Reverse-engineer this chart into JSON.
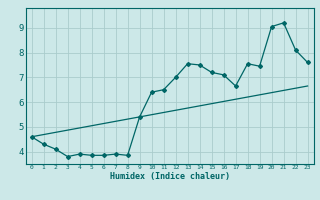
{
  "xlabel": "Humidex (Indice chaleur)",
  "bg_color": "#cce8e8",
  "grid_color": "#aacccc",
  "line_color": "#006666",
  "xlim": [
    -0.5,
    23.5
  ],
  "ylim": [
    3.5,
    9.8
  ],
  "xticks": [
    0,
    1,
    2,
    3,
    4,
    5,
    6,
    7,
    8,
    9,
    10,
    11,
    12,
    13,
    14,
    15,
    16,
    17,
    18,
    19,
    20,
    21,
    22,
    23
  ],
  "yticks": [
    4,
    5,
    6,
    7,
    8,
    9
  ],
  "data_line": [
    [
      0,
      4.6
    ],
    [
      1,
      4.3
    ],
    [
      2,
      4.1
    ],
    [
      3,
      3.8
    ],
    [
      4,
      3.9
    ],
    [
      5,
      3.85
    ],
    [
      6,
      3.85
    ],
    [
      7,
      3.9
    ],
    [
      8,
      3.85
    ],
    [
      9,
      5.4
    ],
    [
      10,
      6.4
    ],
    [
      11,
      6.5
    ],
    [
      12,
      7.0
    ],
    [
      13,
      7.55
    ],
    [
      14,
      7.5
    ],
    [
      15,
      7.2
    ],
    [
      16,
      7.1
    ],
    [
      17,
      6.65
    ],
    [
      18,
      7.55
    ],
    [
      19,
      7.45
    ],
    [
      20,
      9.05
    ],
    [
      21,
      9.2
    ],
    [
      22,
      8.1
    ],
    [
      23,
      7.6
    ]
  ],
  "trend_line": [
    [
      0,
      4.6
    ],
    [
      23,
      6.65
    ]
  ]
}
